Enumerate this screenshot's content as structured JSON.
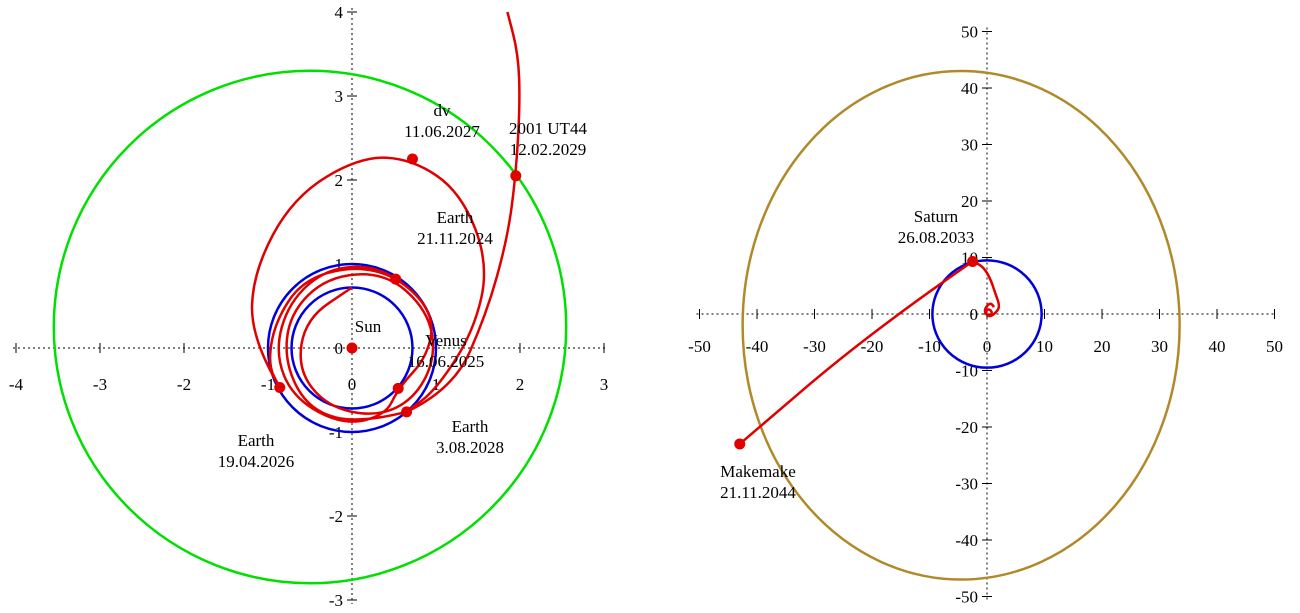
{
  "chart_data": [
    {
      "type": "diagram",
      "xlim": [
        -4,
        3
      ],
      "ylim": [
        -3,
        4
      ],
      "x_ticks": [
        "-4",
        "-3",
        "-2",
        "-1",
        "0",
        "1",
        "2",
        "3"
      ],
      "y_ticks": [
        "-3",
        "-2",
        "-1",
        "0",
        "1",
        "2",
        "3",
        "4"
      ],
      "orbits": [
        {
          "name": "inner-orbit",
          "color": "#0000dd",
          "cx": 0,
          "cy": 0,
          "rx": 0.72,
          "ry": 0.72
        },
        {
          "name": "earth-orbit",
          "color": "#0000dd",
          "cx": 0,
          "cy": 0,
          "rx": 1.0,
          "ry": 1.0
        },
        {
          "name": "target-orbit",
          "color": "#00e000",
          "cx": -0.5,
          "cy": 0.25,
          "rx": 3.05,
          "ry": 3.05
        }
      ],
      "trajectory_color": "#e00000",
      "points": [
        {
          "id": "sun",
          "x": 0,
          "y": 0,
          "label": [
            "Sun"
          ]
        },
        {
          "id": "earth-2024",
          "x": 0.52,
          "y": 0.82,
          "label": [
            "Earth",
            "21.11.2024"
          ]
        },
        {
          "id": "venus-2025",
          "x": 0.55,
          "y": -0.48,
          "label": [
            "Venus",
            "16.06.2025"
          ]
        },
        {
          "id": "earth-2026",
          "x": -0.86,
          "y": -0.47,
          "label": [
            "Earth",
            "19.04.2026"
          ]
        },
        {
          "id": "dv-2027",
          "x": 0.72,
          "y": 2.25,
          "label": [
            "dv",
            "11.06.2027"
          ]
        },
        {
          "id": "earth-2028",
          "x": 0.65,
          "y": -0.76,
          "label": [
            "Earth",
            "3.08.2028"
          ]
        },
        {
          "id": "ut44-2029",
          "x": 1.95,
          "y": 2.05,
          "label": [
            "2001 UT44",
            "12.02.2029"
          ]
        }
      ]
    },
    {
      "type": "diagram",
      "xlim": [
        -50,
        50
      ],
      "ylim": [
        -50,
        50
      ],
      "x_ticks": [
        "-50",
        "-40",
        "-30",
        "-20",
        "-10",
        "0",
        "10",
        "20",
        "30",
        "40",
        "50"
      ],
      "y_ticks": [
        "-50",
        "-40",
        "-30",
        "-20",
        "-10",
        "0",
        "10",
        "20",
        "30",
        "40",
        "50"
      ],
      "orbits": [
        {
          "name": "saturn-orbit",
          "color": "#0000dd",
          "cx": 0,
          "cy": 0,
          "rx": 9.5,
          "ry": 9.5
        },
        {
          "name": "makemake-orbit",
          "color": "#b08a2a",
          "cx": -4.5,
          "cy": -2,
          "rx": 38,
          "ry": 45
        }
      ],
      "trajectory_color": "#e00000",
      "points": [
        {
          "id": "saturn-2033",
          "x": -2.5,
          "y": 9.3,
          "label": [
            "Saturn",
            "26.08.2033"
          ]
        },
        {
          "id": "makemake-2044",
          "x": -43,
          "y": -23,
          "label": [
            "Makemake",
            "21.11.2044"
          ]
        }
      ]
    }
  ]
}
